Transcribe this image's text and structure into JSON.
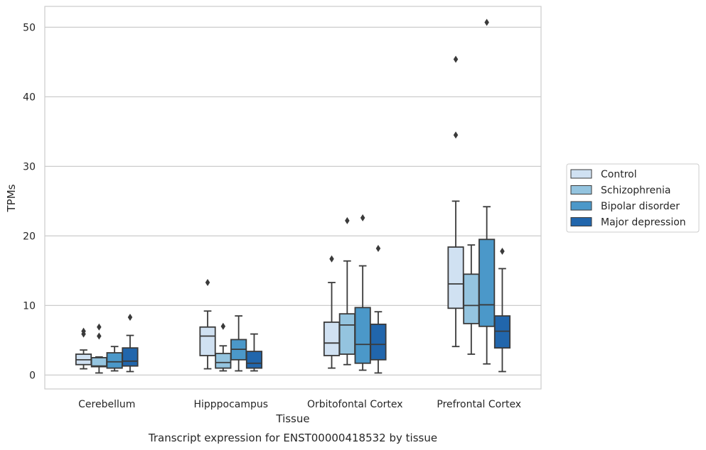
{
  "chart_data": {
    "type": "box",
    "title": "",
    "caption": "Transcript expression for ENST00000418532 by tissue",
    "xlabel": "Tissue",
    "ylabel": "TPMs",
    "ylim": [
      -2,
      53
    ],
    "yticks": [
      0,
      10,
      20,
      30,
      40,
      50
    ],
    "grid": true,
    "legend_position": "right",
    "categories": [
      "Cerebellum",
      "Hipppocampus",
      "Orbitofontal Cortex",
      "Prefrontal Cortex"
    ],
    "series": [
      {
        "name": "Control",
        "color": "#d0e1f2",
        "boxes": [
          {
            "whisker_low": 0.9,
            "q1": 1.5,
            "median": 2.2,
            "q3": 3.0,
            "whisker_high": 3.6,
            "outliers": [
              5.9,
              6.3
            ]
          },
          {
            "whisker_low": 0.9,
            "q1": 2.8,
            "median": 5.6,
            "q3": 6.9,
            "whisker_high": 9.2,
            "outliers": [
              13.3
            ]
          },
          {
            "whisker_low": 1.0,
            "q1": 2.8,
            "median": 4.6,
            "q3": 7.6,
            "whisker_high": 13.3,
            "outliers": [
              16.7
            ]
          },
          {
            "whisker_low": 4.1,
            "q1": 9.6,
            "median": 13.1,
            "q3": 18.4,
            "whisker_high": 25.0,
            "outliers": [
              34.5,
              45.4
            ]
          }
        ]
      },
      {
        "name": "Schizophrenia",
        "color": "#94c4df",
        "boxes": [
          {
            "whisker_low": 0.3,
            "q1": 1.2,
            "median": 1.3,
            "q3": 2.5,
            "whisker_high": 2.6,
            "outliers": [
              5.6,
              6.9
            ]
          },
          {
            "whisker_low": 0.6,
            "q1": 1.0,
            "median": 1.8,
            "q3": 3.1,
            "whisker_high": 4.2,
            "outliers": [
              7.0
            ]
          },
          {
            "whisker_low": 1.5,
            "q1": 3.0,
            "median": 7.2,
            "q3": 8.8,
            "whisker_high": 16.4,
            "outliers": [
              22.2
            ]
          },
          {
            "whisker_low": 3.0,
            "q1": 7.4,
            "median": 10.0,
            "q3": 14.5,
            "whisker_high": 18.7,
            "outliers": []
          }
        ]
      },
      {
        "name": "Bipolar disorder",
        "color": "#4b98c9",
        "boxes": [
          {
            "whisker_low": 0.6,
            "q1": 1.0,
            "median": 1.9,
            "q3": 3.2,
            "whisker_high": 4.1,
            "outliers": []
          },
          {
            "whisker_low": 0.6,
            "q1": 2.2,
            "median": 3.7,
            "q3": 5.1,
            "whisker_high": 8.5,
            "outliers": []
          },
          {
            "whisker_low": 0.7,
            "q1": 1.7,
            "median": 4.4,
            "q3": 9.7,
            "whisker_high": 15.7,
            "outliers": [
              22.6
            ]
          },
          {
            "whisker_low": 1.6,
            "q1": 7.0,
            "median": 10.1,
            "q3": 19.5,
            "whisker_high": 24.2,
            "outliers": [
              50.7
            ]
          }
        ]
      },
      {
        "name": "Major depression",
        "color": "#2166ac",
        "boxes": [
          {
            "whisker_low": 0.5,
            "q1": 1.3,
            "median": 2.0,
            "q3": 3.9,
            "whisker_high": 5.7,
            "outliers": [
              8.3
            ]
          },
          {
            "whisker_low": 0.6,
            "q1": 1.0,
            "median": 1.7,
            "q3": 3.4,
            "whisker_high": 5.9,
            "outliers": []
          },
          {
            "whisker_low": 0.3,
            "q1": 2.2,
            "median": 4.4,
            "q3": 7.3,
            "whisker_high": 9.1,
            "outliers": [
              18.2
            ]
          },
          {
            "whisker_low": 0.5,
            "q1": 3.9,
            "median": 6.3,
            "q3": 8.5,
            "whisker_high": 15.3,
            "outliers": [
              17.8
            ]
          }
        ]
      }
    ]
  }
}
